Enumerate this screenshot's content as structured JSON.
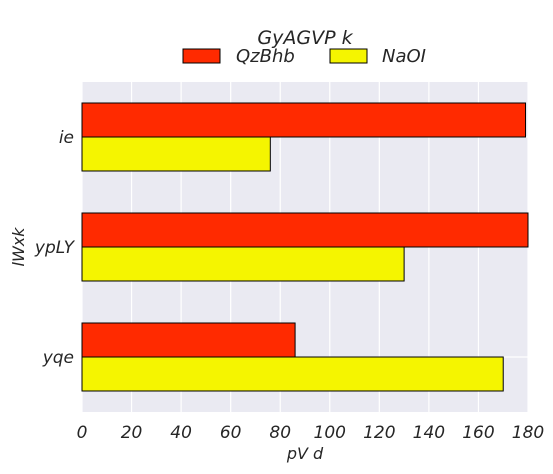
{
  "chart_data": {
    "type": "bar",
    "orientation": "horizontal",
    "title": "",
    "legend_title": "GyAGVP k",
    "legend_placement": "top-center",
    "xlabel": "pV d",
    "ylabel": "lWxk",
    "categories": [
      "ie",
      "ypLY",
      "yqe"
    ],
    "series": [
      {
        "name": "QzBhb",
        "color": "#ff2a00",
        "values": [
          179,
          180,
          86
        ]
      },
      {
        "name": "NaOI",
        "color": "#f5f500",
        "values": [
          76,
          130,
          170
        ]
      }
    ],
    "xlim": [
      0,
      180
    ],
    "xticks": [
      "0",
      "20",
      "40",
      "60",
      "80",
      "100",
      "120",
      "140",
      "160",
      "180"
    ],
    "grid": true,
    "plot_background": "#eaeaf2"
  }
}
